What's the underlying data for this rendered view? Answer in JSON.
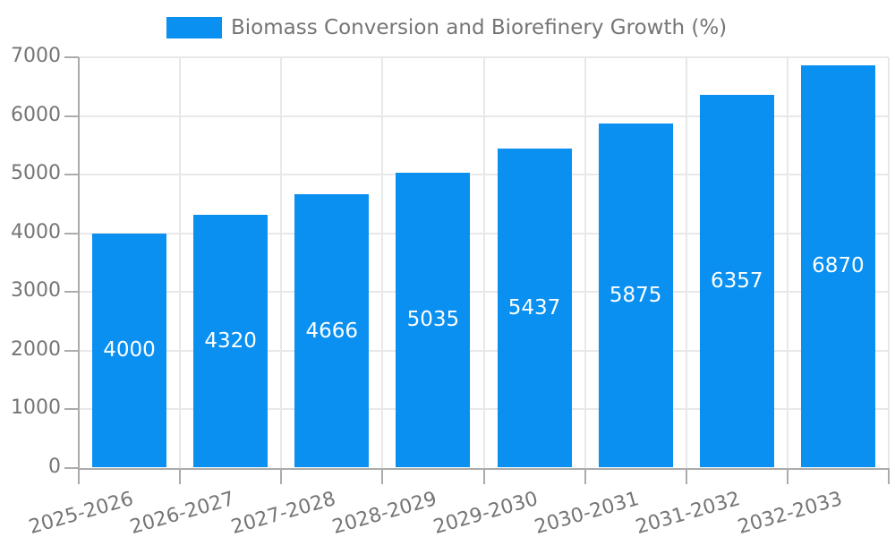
{
  "legend": {
    "label": "Biomass Conversion and Biorefinery Growth (%)"
  },
  "chart_data": {
    "type": "bar",
    "title": "Biomass Conversion and Biorefinery Growth (%)",
    "categories": [
      "2025-2026",
      "2026-2027",
      "2027-2028",
      "2028-2029",
      "2029-2030",
      "2030-2031",
      "2031-2032",
      "2032-2033"
    ],
    "values": [
      4000,
      4320,
      4666,
      5035,
      5437,
      5875,
      6357,
      6870
    ],
    "value_labels": [
      "4000",
      "4320",
      "4666",
      "5035",
      "5437",
      "5875",
      "6357",
      "6870"
    ],
    "xlabel": "",
    "ylabel": "",
    "ylim": [
      0,
      7000
    ],
    "ytick_step": 1000,
    "yticks": [
      "0",
      "1000",
      "2000",
      "3000",
      "4000",
      "5000",
      "6000",
      "7000"
    ],
    "grid": true,
    "legend_position": "top-center",
    "colors": {
      "bar": "#0a90f0",
      "value_label": "#ffffff",
      "grid": "#e8e8e8",
      "axis": "#ababab",
      "tick_label": "#757575",
      "legend_text": "#757575"
    }
  }
}
